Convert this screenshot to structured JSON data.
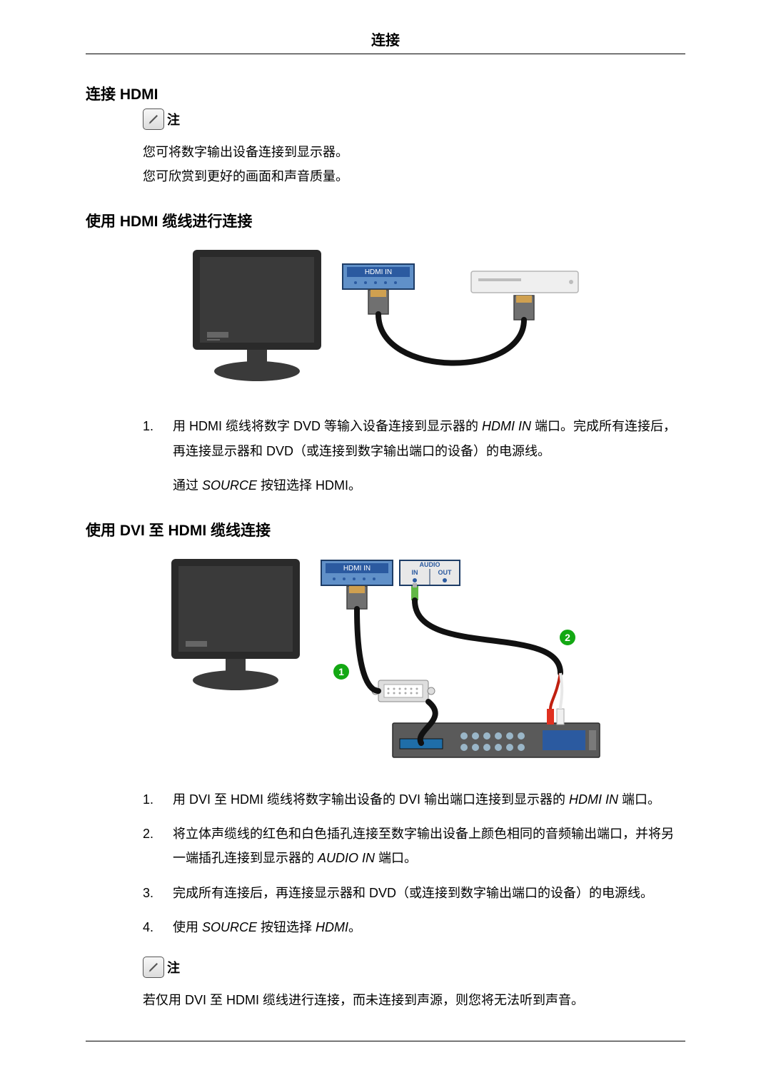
{
  "page_header": "连接",
  "section1_title": "连接 HDMI",
  "note_label": "注",
  "intro_line1": "您可将数字输出设备连接到显示器。",
  "intro_line2": "您可欣赏到更好的画面和声音质量。",
  "section2_title": "使用 HDMI 缆线进行连接",
  "diagram1": {
    "port_label": "HDMI IN",
    "colors": {
      "monitor": "#2a2a2a",
      "panel_border": "#1d3c66",
      "panel_fill": "#5a8acb",
      "cable": "#111111",
      "dvd": "#efefef"
    }
  },
  "hdmi_steps": [
    {
      "num": "1.",
      "text_before": "用 HDMI 缆线将数字 DVD 等输入设备连接到显示器的 ",
      "italic1": "HDMI IN",
      "text_mid": " 端口。完成所有连接后，再连接显示器和 DVD（或连接到数字输出端口的设备）的电源线。",
      "line2_before": "通过 ",
      "line2_italic": "SOURCE",
      "line2_after": " 按钮选择 HDMI。"
    }
  ],
  "section3_title": "使用 DVI 至 HDMI 缆线连接",
  "diagram2": {
    "hdmi_label": "HDMI IN",
    "audio_label": "AUDIO",
    "audio_in": "IN",
    "audio_out": "OUT",
    "callout1": "1",
    "callout2": "2",
    "colors": {
      "callout": "#13a813",
      "receiver": "#5a5a5a",
      "rca_red": "#e03020",
      "rca_white": "#f0f0f0"
    }
  },
  "dvi_steps": [
    {
      "num": "1.",
      "parts": [
        {
          "t": "用 DVI 至 HDMI 缆线将数字输出设备的 DVI 输出端口连接到显示器的 "
        },
        {
          "i": "HDMI IN"
        },
        {
          "t": " 端口。"
        }
      ]
    },
    {
      "num": "2.",
      "parts": [
        {
          "t": "将立体声缆线的红色和白色插孔连接至数字输出设备上颜色相同的音频输出端口，并将另一端插孔连接到显示器的 "
        },
        {
          "i": "AUDIO IN"
        },
        {
          "t": " 端口。"
        }
      ]
    },
    {
      "num": "3.",
      "parts": [
        {
          "t": "完成所有连接后，再连接显示器和 DVD（或连接到数字输出端口的设备）的电源线。"
        }
      ]
    },
    {
      "num": "4.",
      "parts": [
        {
          "t": "使用 "
        },
        {
          "i": "SOURCE "
        },
        {
          "t": " 按钮选择 "
        },
        {
          "i": "HDMI"
        },
        {
          "t": "。"
        }
      ]
    }
  ],
  "final_note": "若仅用 DVI 至 HDMI 缆线进行连接，而未连接到声源，则您将无法听到声音。"
}
